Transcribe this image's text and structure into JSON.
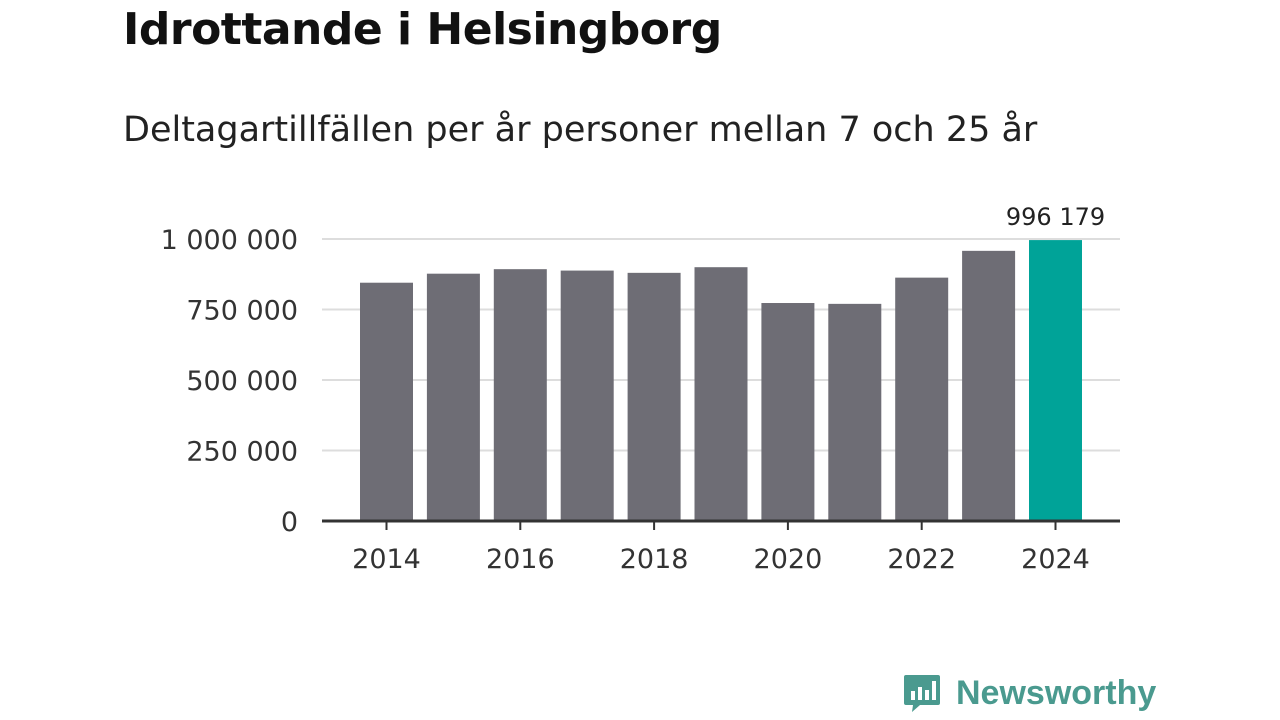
{
  "title": "Idrottande i Helsingborg",
  "subtitle": "Deltagartillfällen per år personer mellan 7 och 25 år",
  "brand": {
    "name": "Newsworthy",
    "color": "#4a9a8f"
  },
  "colors": {
    "bar": "#6e6d75",
    "highlight": "#00a398",
    "grid": "#dddddd",
    "axis": "#333333"
  },
  "chart_data": {
    "type": "bar",
    "title": "Idrottande i Helsingborg",
    "subtitle": "Deltagartillfällen per år personer mellan 7 och 25 år",
    "xlabel": "",
    "ylabel": "",
    "categories": [
      "2014",
      "2015",
      "2016",
      "2017",
      "2018",
      "2019",
      "2020",
      "2021",
      "2022",
      "2023",
      "2024"
    ],
    "values": [
      845000,
      877000,
      893000,
      888000,
      880000,
      900000,
      773000,
      770000,
      863000,
      958000,
      996179
    ],
    "highlight_index": 10,
    "highlight_label": "996 179",
    "ylim": [
      0,
      1000000
    ],
    "yticks": [
      0,
      250000,
      500000,
      750000,
      1000000
    ],
    "ytick_labels": [
      "0",
      "250 000",
      "500 000",
      "750 000",
      "1 000 000"
    ],
    "xtick_labels": [
      "2014",
      "2016",
      "2018",
      "2020",
      "2022",
      "2024"
    ],
    "grid": true
  }
}
